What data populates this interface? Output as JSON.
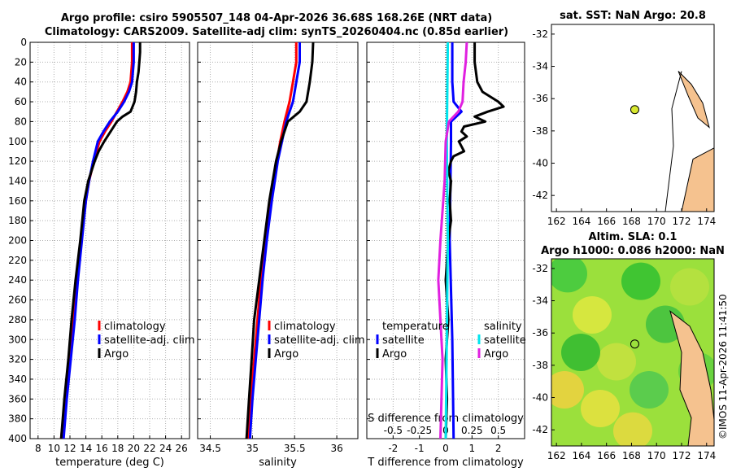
{
  "header": {
    "title_line1": "Argo profile: csiro 5905507_148 04-Apr-2026 36.68S 168.26E (NRT data)",
    "title_line2": "Climatology: CARS2009. Satellite-adj clim: synTS_20260404.nc (0.85d earlier)"
  },
  "credit": "©IMOS 11-Apr-2026 11:41:50",
  "colors": {
    "climatology": "#ff0000",
    "satellite": "#0000ff",
    "argo": "#000000",
    "sal_satellite": "#00e5ee",
    "sal_argo": "#e020e0",
    "land": "#f5c28f"
  },
  "chart_data": [
    {
      "type": "line",
      "id": "temperature",
      "xlabel": "temperature (deg C)",
      "ylabel": "",
      "xlim": [
        7,
        27
      ],
      "ylim": [
        400,
        0
      ],
      "xticks": [
        "8",
        "10",
        "12",
        "14",
        "16",
        "18",
        "20",
        "22",
        "24",
        "26"
      ],
      "yticks": [
        "0",
        "20",
        "40",
        "60",
        "80",
        "100",
        "120",
        "140",
        "160",
        "180",
        "200",
        "220",
        "240",
        "260",
        "280",
        "300",
        "320",
        "340",
        "360",
        "380",
        "400"
      ],
      "legend": [
        "climatology",
        "satellite-adj. clim",
        "Argo"
      ],
      "series": [
        {
          "name": "climatology",
          "depth": [
            0,
            20,
            40,
            50,
            60,
            70,
            80,
            90,
            100,
            120,
            140,
            160,
            200,
            240,
            280,
            320,
            360,
            400
          ],
          "values": [
            19.8,
            19.8,
            19.6,
            19.2,
            18.6,
            17.9,
            17.2,
            16.4,
            15.7,
            15.0,
            14.4,
            14.0,
            13.4,
            12.9,
            12.4,
            11.9,
            11.4,
            10.9
          ]
        },
        {
          "name": "satellite-adj. clim",
          "depth": [
            0,
            20,
            40,
            50,
            60,
            70,
            80,
            90,
            100,
            120,
            140,
            160,
            200,
            240,
            280,
            320,
            360,
            400
          ],
          "values": [
            20.0,
            20.0,
            19.8,
            19.4,
            18.8,
            18.0,
            17.0,
            16.2,
            15.5,
            14.9,
            14.4,
            14.0,
            13.5,
            13.0,
            12.6,
            12.1,
            11.6,
            11.2
          ]
        },
        {
          "name": "Argo",
          "depth": [
            0,
            10,
            20,
            30,
            40,
            50,
            60,
            70,
            75,
            80,
            85,
            90,
            100,
            110,
            120,
            140,
            160,
            200,
            240,
            280,
            320,
            360,
            400
          ],
          "values": [
            20.8,
            20.8,
            20.7,
            20.6,
            20.4,
            20.3,
            20.1,
            19.6,
            18.6,
            17.9,
            17.5,
            17.1,
            16.3,
            15.6,
            15.1,
            14.3,
            13.8,
            13.3,
            12.7,
            12.2,
            11.8,
            11.3,
            10.9
          ]
        }
      ]
    },
    {
      "type": "line",
      "id": "salinity",
      "xlabel": "salinity",
      "ylabel": "",
      "xlim": [
        34.35,
        36.25
      ],
      "ylim": [
        400,
        0
      ],
      "xticks": [
        "34.5",
        "35",
        "35.5",
        "36"
      ],
      "legend": [
        "climatology",
        "satellite-adj. clim",
        "Argo"
      ],
      "series": [
        {
          "name": "climatology",
          "depth": [
            0,
            20,
            40,
            60,
            80,
            100,
            120,
            160,
            200,
            240,
            280,
            320,
            360,
            400
          ],
          "values": [
            35.52,
            35.52,
            35.48,
            35.44,
            35.38,
            35.33,
            35.29,
            35.22,
            35.15,
            35.1,
            35.06,
            35.02,
            34.98,
            34.95
          ]
        },
        {
          "name": "satellite-adj. clim",
          "depth": [
            0,
            20,
            40,
            60,
            80,
            100,
            120,
            160,
            200,
            240,
            280,
            320,
            360,
            400
          ],
          "values": [
            35.56,
            35.56,
            35.52,
            35.48,
            35.4,
            35.35,
            35.3,
            35.23,
            35.17,
            35.12,
            35.08,
            35.04,
            35.0,
            34.97
          ]
        },
        {
          "name": "Argo",
          "depth": [
            0,
            20,
            40,
            60,
            70,
            80,
            100,
            120,
            160,
            200,
            240,
            280,
            320,
            360,
            400
          ],
          "values": [
            35.72,
            35.71,
            35.68,
            35.64,
            35.56,
            35.42,
            35.34,
            35.28,
            35.2,
            35.14,
            35.08,
            35.02,
            34.99,
            34.96,
            34.93
          ]
        }
      ]
    },
    {
      "type": "line",
      "id": "difference",
      "xlabel": "T difference from climatology",
      "xlabel_top": "S difference from climatology",
      "xlim": [
        -3,
        3
      ],
      "ylim": [
        400,
        0
      ],
      "xticks": [
        "-2",
        "-1",
        "0",
        "1",
        "2"
      ],
      "top_ticks": [
        "-0.5",
        "-0.25",
        "0",
        "0.25",
        "0.5"
      ],
      "legend_left": [
        "temperature",
        "satellite",
        "Argo"
      ],
      "legend_right": [
        "salinity",
        "satellite",
        "Argo"
      ],
      "series": [
        {
          "name": "T satellite",
          "depth": [
            0,
            40,
            60,
            70,
            80,
            100,
            200,
            300,
            400
          ],
          "values": [
            0.25,
            0.25,
            0.3,
            0.6,
            0.2,
            0.2,
            0.15,
            0.25,
            0.3
          ]
        },
        {
          "name": "T Argo",
          "depth": [
            0,
            10,
            20,
            40,
            50,
            60,
            65,
            70,
            75,
            80,
            85,
            90,
            95,
            100,
            110,
            115,
            120,
            130,
            140,
            160,
            180,
            200,
            240,
            280,
            320,
            360,
            400
          ],
          "values": [
            1.1,
            1.1,
            1.1,
            1.2,
            1.4,
            2.0,
            2.2,
            1.6,
            1.1,
            1.5,
            0.7,
            0.6,
            0.8,
            0.5,
            0.7,
            0.3,
            0.2,
            0.1,
            0.2,
            0.15,
            0.2,
            0.1,
            0.0,
            0.1,
            0.0,
            0.05,
            0.0
          ]
        },
        {
          "name": "S satellite",
          "depth": [
            0,
            100,
            200,
            300,
            400
          ],
          "values": [
            0.02,
            0.01,
            0.02,
            0.01,
            0.0
          ]
        },
        {
          "name": "S Argo",
          "depth": [
            0,
            20,
            40,
            60,
            70,
            80,
            100,
            140,
            200,
            240,
            280,
            320,
            360,
            400
          ],
          "values": [
            0.2,
            0.19,
            0.17,
            0.16,
            0.12,
            0.03,
            0.0,
            -0.01,
            -0.05,
            -0.07,
            -0.05,
            -0.03,
            -0.04,
            -0.05
          ]
        }
      ]
    },
    {
      "type": "map",
      "id": "sst",
      "title": "sat. SST: NaN Argo: 20.8",
      "xticks": [
        "162",
        "164",
        "166",
        "168",
        "170",
        "172",
        "174"
      ],
      "yticks": [
        "-32",
        "-34",
        "-36",
        "-38",
        "-40",
        "-42"
      ],
      "point": {
        "lon": 168.26,
        "lat": -36.68
      }
    },
    {
      "type": "heatmap",
      "id": "sla",
      "title_line1": "Altim. SLA: 0.1",
      "title_line2": "Argo h1000: 0.086 h2000: NaN",
      "xticks": [
        "162",
        "164",
        "166",
        "168",
        "170",
        "172",
        "174"
      ],
      "yticks": [
        "-32",
        "-34",
        "-36",
        "-38",
        "-40",
        "-42"
      ],
      "point": {
        "lon": 168.26,
        "lat": -36.68
      }
    }
  ]
}
